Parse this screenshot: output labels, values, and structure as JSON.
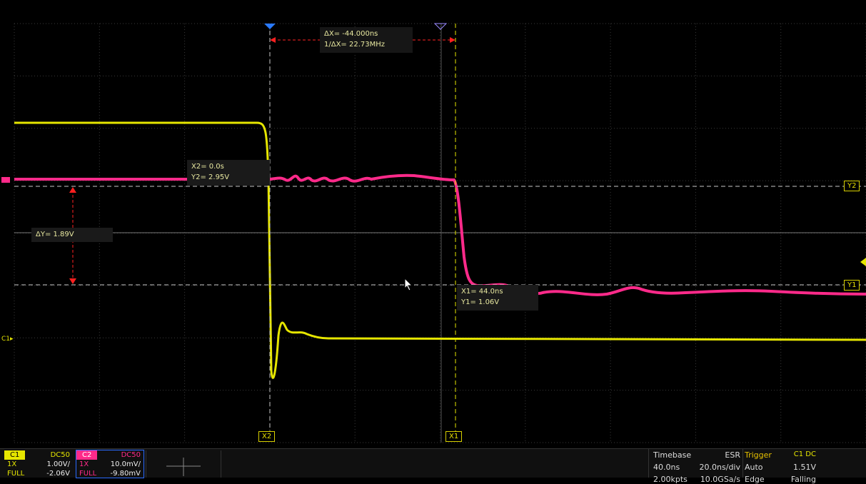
{
  "cursors": {
    "delta_x": "ΔX= -44.000ns",
    "inv_delta_x": "1/ΔX= 22.73MHz",
    "x2_readout": "X2= 0.0s",
    "y2_readout": "Y2= 2.95V",
    "delta_y": "ΔY= 1.89V",
    "x1_readout": "X1= 44.0ns",
    "y1_readout": "Y1= 1.06V",
    "x1_tag": "X1",
    "x2_tag": "X2",
    "y1_tag": "Y1",
    "y2_tag": "Y2"
  },
  "markers": {
    "c1_marker": "C1▸"
  },
  "colors": {
    "c1": "#e6e600",
    "c2": "#ff2a8a",
    "cursor_red": "#ff2020",
    "grid": "#3a3a3a"
  },
  "channels": {
    "c1": {
      "name": "C1",
      "coupling": "DC50",
      "probe": "1X",
      "scale": "1.00V/",
      "bw": "FULL",
      "offset": "-2.06V"
    },
    "c2": {
      "name": "C2",
      "coupling": "DC50",
      "probe": "1X",
      "scale": "10.0mV/",
      "bw": "FULL",
      "offset": "-9.80mV"
    }
  },
  "timebase": {
    "label": "Timebase",
    "mode": "ESR",
    "delay": "40.0ns",
    "scale": "20.0ns/div",
    "points": "2.00kpts",
    "rate": "10.0GSa/s"
  },
  "trigger": {
    "label": "Trigger",
    "source": "C1 DC",
    "mode": "Auto",
    "level": "1.51V",
    "type": "Edge",
    "slope": "Falling"
  }
}
